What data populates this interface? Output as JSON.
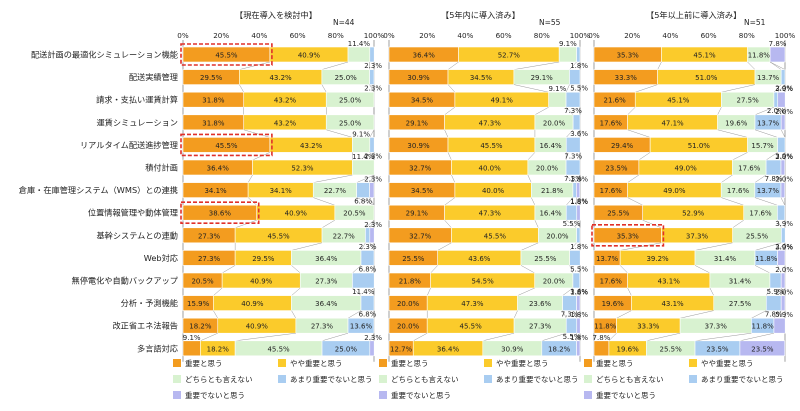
{
  "chart_data": {
    "type": "bar",
    "stacked": true,
    "orientation": "horizontal",
    "categories": [
      "配送計画の最適化シミュレーション機能",
      "配送実績管理",
      "請求・支払い運賃計算",
      "運賃シミュレーション",
      "リアルタイム配送進捗管理",
      "積付計画",
      "倉庫・在庫管理システム（WMS）との連携",
      "位置情報管理や動体管理",
      "基幹システムとの連動",
      "Web対応",
      "無停電化や自動バックアップ",
      "分析・予測機能",
      "改正省エネ法報告",
      "多言語対応"
    ],
    "xlim": [
      0,
      100
    ],
    "xticks": [
      "0%",
      "20%",
      "40%",
      "60%",
      "80%",
      "100%"
    ],
    "series_names": [
      "重要と思う",
      "やや重要と思う",
      "どちらとも言えない",
      "あまり重要でないと思う",
      "重要でないと思う"
    ],
    "series_colors": [
      "#f39c1f",
      "#fbcb2b",
      "#d8f2d0",
      "#a9cdf1",
      "#b7b8f0"
    ],
    "panels": [
      {
        "title": "【現在導入を検討中】",
        "n": "N=44",
        "values": [
          [
            45.5,
            40.9,
            11.4,
            2.3,
            0
          ],
          [
            29.5,
            43.2,
            25.0,
            2.3,
            0
          ],
          [
            31.8,
            43.2,
            25.0,
            0,
            0
          ],
          [
            31.8,
            43.2,
            25.0,
            0,
            0
          ],
          [
            45.5,
            43.2,
            9.1,
            2.3,
            0
          ],
          [
            36.4,
            52.3,
            11.4,
            0,
            0
          ],
          [
            34.1,
            34.1,
            22.7,
            6.8,
            2.3
          ],
          [
            38.6,
            40.9,
            20.5,
            0,
            0
          ],
          [
            27.3,
            45.5,
            22.7,
            2.3,
            2.3
          ],
          [
            27.3,
            29.5,
            36.4,
            6.8,
            0
          ],
          [
            20.5,
            40.9,
            27.3,
            11.4,
            0
          ],
          [
            15.9,
            40.9,
            36.4,
            6.8,
            0
          ],
          [
            18.2,
            40.9,
            27.3,
            13.6,
            0
          ],
          [
            9.1,
            18.2,
            45.5,
            25.0,
            2.3
          ]
        ],
        "labels": [
          [
            "45.5%",
            "40.9%",
            "11.4%",
            "2.3%",
            ""
          ],
          [
            "29.5%",
            "43.2%",
            "25.0%",
            "2.3%",
            ""
          ],
          [
            "31.8%",
            "43.2%",
            "25.0%",
            "",
            ""
          ],
          [
            "31.8%",
            "43.2%",
            "25.0%",
            "",
            ""
          ],
          [
            "45.5%",
            "43.2%",
            "9.1%",
            "2.3%",
            ""
          ],
          [
            "36.4%",
            "52.3%",
            "11.4%",
            "",
            ""
          ],
          [
            "34.1%",
            "34.1%",
            "22.7%",
            "6.8%",
            "2.3%"
          ],
          [
            "38.6%",
            "40.9%",
            "20.5%",
            "",
            ""
          ],
          [
            "27.3%",
            "45.5%",
            "22.7%",
            "2.3%",
            "2.3%"
          ],
          [
            "27.3%",
            "29.5%",
            "36.4%",
            "6.8%",
            ""
          ],
          [
            "20.5%",
            "40.9%",
            "27.3%",
            "11.4%",
            ""
          ],
          [
            "15.9%",
            "40.9%",
            "36.4%",
            "6.8%",
            ""
          ],
          [
            "18.2%",
            "40.9%",
            "27.3%",
            "13.6%",
            ""
          ],
          [
            "9.1%",
            "18.2%",
            "45.5%",
            "25.0%",
            "2.3%"
          ]
        ],
        "highlight_rows": [
          0,
          4,
          7
        ]
      },
      {
        "title": "【5年内に導入済み】",
        "n": "N=55",
        "values": [
          [
            36.4,
            52.7,
            9.1,
            1.8,
            0
          ],
          [
            30.9,
            34.5,
            29.1,
            5.5,
            0
          ],
          [
            34.5,
            49.1,
            9.1,
            7.3,
            0
          ],
          [
            29.1,
            47.3,
            20.0,
            3.6,
            0
          ],
          [
            30.9,
            45.5,
            16.4,
            7.3,
            0
          ],
          [
            32.7,
            40.0,
            20.0,
            7.3,
            0
          ],
          [
            34.5,
            40.0,
            21.8,
            1.8,
            1.8
          ],
          [
            29.1,
            47.3,
            16.4,
            5.5,
            1.8
          ],
          [
            32.7,
            45.5,
            20.0,
            1.8,
            0
          ],
          [
            25.5,
            43.6,
            25.5,
            5.5,
            0
          ],
          [
            21.8,
            54.5,
            20.0,
            3.6,
            0
          ],
          [
            20.0,
            47.3,
            23.6,
            7.3,
            1.8
          ],
          [
            20.0,
            45.5,
            27.3,
            5.5,
            1.8
          ],
          [
            12.7,
            36.4,
            30.9,
            18.2,
            1.8
          ]
        ],
        "labels": [
          [
            "36.4%",
            "52.7%",
            "9.1%",
            "1.8%",
            ""
          ],
          [
            "30.9%",
            "34.5%",
            "29.1%",
            "5.5%",
            ""
          ],
          [
            "34.5%",
            "49.1%",
            "9.1%",
            "7.3%",
            ""
          ],
          [
            "29.1%",
            "47.3%",
            "20.0%",
            "3.6%",
            ""
          ],
          [
            "30.9%",
            "45.5%",
            "16.4%",
            "7.3%",
            ""
          ],
          [
            "32.7%",
            "40.0%",
            "20.0%",
            "7.3%",
            ""
          ],
          [
            "34.5%",
            "40.0%",
            "21.8%",
            "1.8%",
            "1.8%"
          ],
          [
            "29.1%",
            "47.3%",
            "16.4%",
            "5.5%",
            "1.8%"
          ],
          [
            "32.7%",
            "45.5%",
            "20.0%",
            "1.8%",
            ""
          ],
          [
            "25.5%",
            "43.6%",
            "25.5%",
            "5.5%",
            ""
          ],
          [
            "21.8%",
            "54.5%",
            "20.0%",
            "3.6%",
            ""
          ],
          [
            "20.0%",
            "47.3%",
            "23.6%",
            "7.3%",
            "1.8%"
          ],
          [
            "20.0%",
            "45.5%",
            "27.3%",
            "5.5%",
            "1.8%"
          ],
          [
            "12.7%",
            "36.4%",
            "30.9%",
            "18.2%",
            "1.8%"
          ]
        ],
        "highlight_rows": []
      },
      {
        "title": "【5年以上前に導入済み】",
        "n": "N=51",
        "values": [
          [
            35.3,
            45.1,
            11.8,
            0,
            7.8
          ],
          [
            33.3,
            51.0,
            13.7,
            2.0,
            0
          ],
          [
            21.6,
            45.1,
            27.5,
            2.0,
            3.9
          ],
          [
            17.6,
            47.1,
            19.6,
            13.7,
            2.0
          ],
          [
            29.4,
            51.0,
            15.7,
            3.9,
            0
          ],
          [
            23.5,
            49.0,
            17.6,
            7.8,
            2.0
          ],
          [
            17.6,
            49.0,
            17.6,
            13.7,
            2.0
          ],
          [
            25.5,
            52.9,
            17.6,
            3.9,
            0
          ],
          [
            35.3,
            37.3,
            25.5,
            2.0,
            0
          ],
          [
            13.7,
            39.2,
            31.4,
            11.8,
            3.9
          ],
          [
            17.6,
            43.1,
            31.4,
            5.9,
            2.0
          ],
          [
            19.6,
            43.1,
            27.5,
            7.8,
            2.0
          ],
          [
            11.8,
            33.3,
            37.3,
            11.8,
            5.9
          ],
          [
            7.8,
            19.6,
            25.5,
            23.5,
            23.5
          ]
        ],
        "labels": [
          [
            "35.3%",
            "45.1%",
            "11.8%",
            "",
            "7.8%"
          ],
          [
            "33.3%",
            "51.0%",
            "13.7%",
            "2.0%",
            ""
          ],
          [
            "21.6%",
            "45.1%",
            "27.5%",
            "2.0%",
            "3.9%"
          ],
          [
            "17.6%",
            "47.1%",
            "19.6%",
            "13.7%",
            "2.0%"
          ],
          [
            "29.4%",
            "51.0%",
            "15.7%",
            "3.9%",
            ""
          ],
          [
            "23.5%",
            "49.0%",
            "17.6%",
            "7.8%",
            "2.0%"
          ],
          [
            "17.6%",
            "49.0%",
            "17.6%",
            "13.7%",
            "2.0%"
          ],
          [
            "25.5%",
            "52.9%",
            "17.6%",
            "3.9%",
            ""
          ],
          [
            "35.3%",
            "37.3%",
            "25.5%",
            "2.0%",
            ""
          ],
          [
            "13.7%",
            "39.2%",
            "31.4%",
            "11.8%",
            "3.9%"
          ],
          [
            "17.6%",
            "43.1%",
            "31.4%",
            "5.9%",
            "2.0%"
          ],
          [
            "19.6%",
            "43.1%",
            "27.5%",
            "7.8%",
            "2.0%"
          ],
          [
            "11.8%",
            "33.3%",
            "37.3%",
            "11.8%",
            "5.9%"
          ],
          [
            "7.8%",
            "19.6%",
            "25.5%",
            "23.5%",
            "23.5%"
          ]
        ],
        "highlight_rows": [
          8
        ]
      }
    ]
  }
}
